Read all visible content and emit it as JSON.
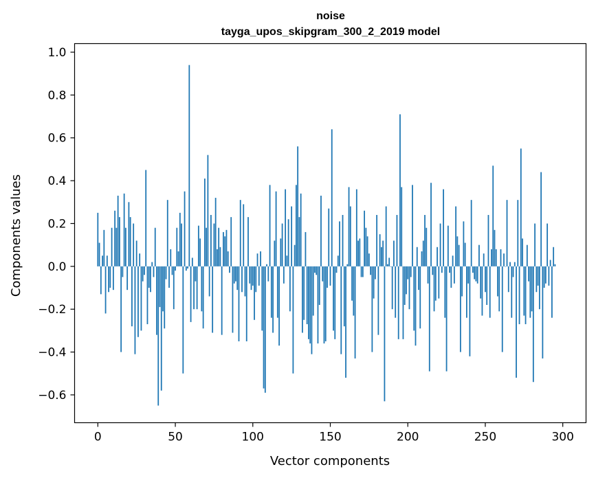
{
  "chart_data": {
    "type": "bar",
    "title_line1": "noise",
    "title_line2": "tayga_upos_skipgram_300_2_2019 model",
    "xlabel": "Vector components",
    "ylabel": "Components values",
    "xlim": [
      -15,
      315
    ],
    "ylim": [
      -0.73,
      1.04
    ],
    "x_ticks": [
      0,
      50,
      100,
      150,
      200,
      250,
      300
    ],
    "x_tick_labels": [
      "0",
      "50",
      "100",
      "150",
      "200",
      "250",
      "300"
    ],
    "y_ticks": [
      -0.6,
      -0.4,
      -0.2,
      0.0,
      0.2,
      0.4,
      0.6,
      0.8,
      1.0
    ],
    "y_tick_labels": [
      "−0.6",
      "−0.4",
      "−0.2",
      "0.0",
      "0.2",
      "0.4",
      "0.6",
      "0.8",
      "1.0"
    ],
    "bar_color": "#1f77b4",
    "values": [
      0.25,
      0.11,
      -0.13,
      0.05,
      0.17,
      -0.22,
      0.05,
      -0.12,
      -0.1,
      0.18,
      -0.11,
      0.26,
      0.18,
      0.33,
      0.23,
      -0.4,
      -0.05,
      0.34,
      0.18,
      -0.11,
      0.3,
      0.23,
      -0.28,
      0.2,
      -0.41,
      0.12,
      -0.33,
      0.06,
      -0.3,
      -0.07,
      -0.04,
      0.45,
      -0.27,
      -0.1,
      -0.12,
      0.02,
      -0.05,
      0.18,
      -0.32,
      -0.65,
      -0.19,
      -0.58,
      -0.21,
      -0.29,
      -0.06,
      0.31,
      -0.1,
      0.08,
      -0.04,
      -0.2,
      -0.02,
      0.18,
      0.07,
      0.25,
      0.2,
      -0.5,
      0.35,
      -0.02,
      -0.01,
      0.94,
      -0.26,
      0.04,
      -0.2,
      -0.07,
      -0.2,
      0.19,
      0.13,
      -0.21,
      -0.29,
      0.41,
      0.18,
      0.52,
      -0.14,
      0.24,
      -0.31,
      0.2,
      0.32,
      0.08,
      0.18,
      0.09,
      -0.32,
      0.16,
      0.14,
      0.17,
      0.07,
      -0.03,
      0.23,
      -0.31,
      -0.08,
      -0.07,
      -0.11,
      -0.35,
      0.31,
      -0.12,
      0.29,
      -0.14,
      -0.35,
      0.23,
      -0.08,
      -0.11,
      -0.09,
      -0.25,
      -0.12,
      0.06,
      -0.09,
      0.07,
      -0.3,
      -0.57,
      -0.59,
      0.01,
      -0.07,
      0.38,
      -0.24,
      -0.31,
      0.12,
      0.35,
      -0.24,
      -0.37,
      0.13,
      0.2,
      -0.08,
      0.36,
      0.05,
      0.22,
      -0.21,
      0.28,
      -0.5,
      0.1,
      0.38,
      0.56,
      0.23,
      0.34,
      -0.31,
      -0.25,
      0.16,
      -0.27,
      -0.34,
      -0.36,
      -0.41,
      -0.23,
      -0.03,
      -0.04,
      -0.36,
      -0.18,
      0.33,
      -0.07,
      -0.36,
      -0.35,
      -0.1,
      0.27,
      -0.09,
      0.64,
      -0.3,
      -0.34,
      -0.03,
      0.05,
      0.21,
      -0.41,
      0.24,
      -0.28,
      -0.52,
      0.01,
      0.37,
      0.28,
      -0.16,
      -0.23,
      -0.43,
      0.36,
      0.12,
      0.13,
      -0.05,
      -0.05,
      0.26,
      0.18,
      0.14,
      0.06,
      -0.04,
      -0.4,
      -0.15,
      -0.06,
      0.24,
      -0.32,
      0.15,
      0.09,
      0.12,
      -0.63,
      0.28,
      0.01,
      0.04,
      0.0,
      -0.2,
      0.12,
      -0.24,
      0.24,
      -0.34,
      0.71,
      0.37,
      -0.34,
      -0.18,
      -0.13,
      -0.06,
      -0.2,
      -0.05,
      0.38,
      -0.3,
      -0.37,
      0.09,
      -0.11,
      -0.29,
      0.07,
      0.12,
      0.24,
      0.18,
      -0.08,
      -0.49,
      0.39,
      -0.04,
      -0.21,
      -0.16,
      0.09,
      -0.15,
      0.2,
      -0.03,
      0.36,
      -0.24,
      -0.49,
      0.19,
      -0.03,
      -0.1,
      0.05,
      -0.08,
      0.28,
      0.14,
      0.1,
      -0.4,
      -0.14,
      0.21,
      0.11,
      -0.24,
      -0.08,
      -0.42,
      0.31,
      -0.03,
      -0.06,
      -0.07,
      -0.08,
      0.1,
      -0.15,
      -0.23,
      0.06,
      -0.12,
      -0.18,
      0.24,
      -0.24,
      0.08,
      0.47,
      0.17,
      0.08,
      -0.14,
      -0.21,
      0.08,
      -0.4,
      0.06,
      0.0,
      0.31,
      -0.12,
      0.02,
      -0.24,
      -0.05,
      0.02,
      -0.52,
      0.31,
      -0.27,
      0.55,
      0.13,
      -0.23,
      -0.27,
      0.1,
      -0.07,
      -0.24,
      -0.21,
      -0.54,
      0.2,
      -0.12,
      -0.09,
      -0.2,
      0.44,
      -0.43,
      -0.1,
      -0.08,
      0.2,
      -0.09,
      0.03,
      -0.24,
      0.09,
      0.01
    ]
  }
}
